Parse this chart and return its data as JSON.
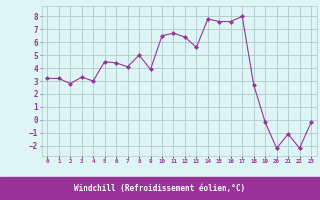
{
  "x": [
    0,
    1,
    2,
    3,
    4,
    5,
    6,
    7,
    8,
    9,
    10,
    11,
    12,
    13,
    14,
    15,
    16,
    17,
    18,
    19,
    20,
    21,
    22,
    23
  ],
  "y": [
    3.2,
    3.2,
    2.8,
    3.3,
    3.0,
    4.5,
    4.4,
    4.1,
    5.0,
    3.9,
    6.5,
    6.7,
    6.4,
    5.6,
    7.8,
    7.6,
    7.6,
    8.0,
    2.7,
    -0.2,
    -2.2,
    -1.1,
    -2.2,
    -0.2
  ],
  "line_color": "#993399",
  "marker": "D",
  "marker_size": 2.0,
  "bg_color": "#dff5f5",
  "grid_color": "#aacccc",
  "xlabel": "Windchill (Refroidissement éolien,°C)",
  "xlabel_color": "#ffffff",
  "xlabel_bg": "#993399",
  "tick_color": "#993399",
  "ylabel_ticks": [
    -2,
    -1,
    0,
    1,
    2,
    3,
    4,
    5,
    6,
    7,
    8
  ],
  "xtick_labels": [
    "0",
    "1",
    "2",
    "3",
    "4",
    "5",
    "6",
    "7",
    "8",
    "9",
    "10",
    "11",
    "12",
    "13",
    "14",
    "15",
    "16",
    "17",
    "18",
    "19",
    "20",
    "21",
    "22",
    "23"
  ],
  "xlim": [
    -0.5,
    23.5
  ],
  "ylim": [
    -2.8,
    8.8
  ]
}
